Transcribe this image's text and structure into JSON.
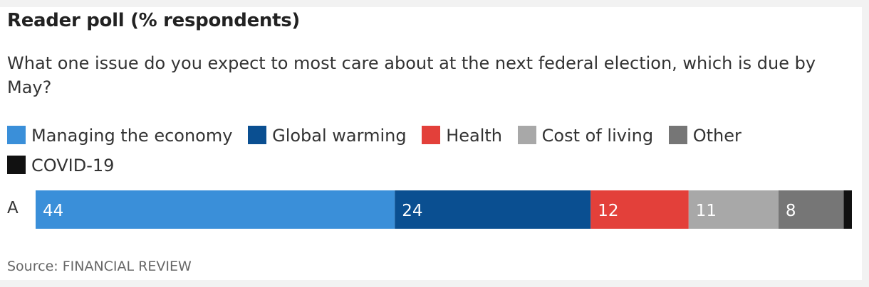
{
  "chart_data": {
    "type": "bar",
    "orientation": "horizontal",
    "stacked": true,
    "title": "Reader poll (% respondents)",
    "subtitle": "What one issue do you expect to most care about at the next federal election, which is due by May?",
    "categories": [
      "A"
    ],
    "series": [
      {
        "name": "Managing the economy",
        "values": [
          44
        ],
        "color": "#3a8fd9",
        "label": "44"
      },
      {
        "name": "Global warming",
        "values": [
          24
        ],
        "color": "#0a4f91",
        "label": "24"
      },
      {
        "name": "Health",
        "values": [
          12
        ],
        "color": "#e3403a",
        "label": "12"
      },
      {
        "name": "Cost of living",
        "values": [
          11
        ],
        "color": "#a8a8a8",
        "label": "11"
      },
      {
        "name": "Other",
        "values": [
          8
        ],
        "color": "#767676",
        "label": "8"
      },
      {
        "name": "COVID-19",
        "values": [
          1
        ],
        "color": "#111111",
        "label": ""
      }
    ],
    "xlim": [
      0,
      100
    ],
    "legend_position": "top",
    "grid": false,
    "source": "Source: FINANCIAL REVIEW"
  }
}
